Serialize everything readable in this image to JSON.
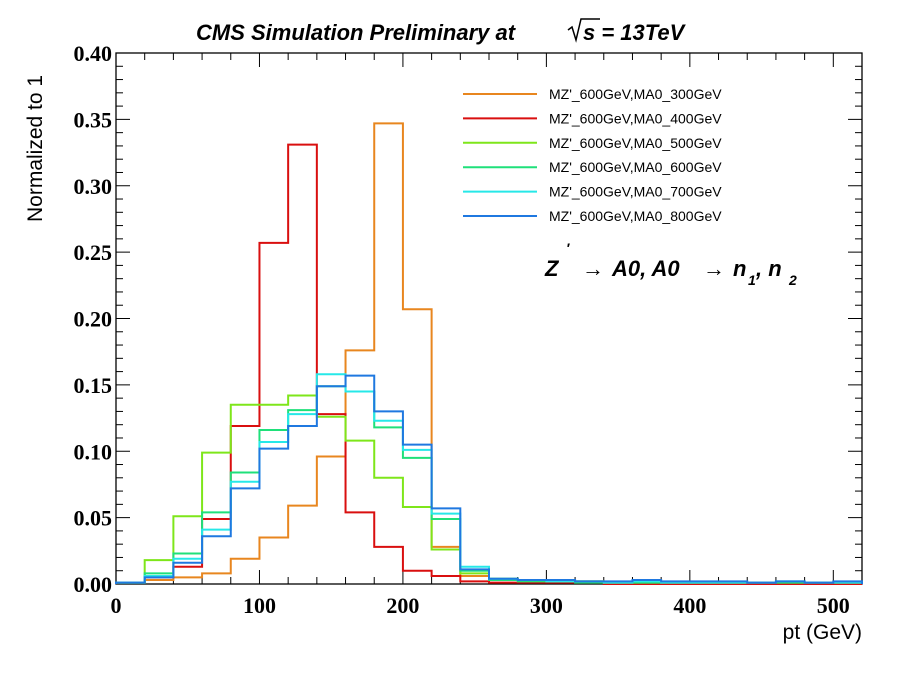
{
  "chart_data": {
    "type": "histogram",
    "title": "CMS Simulation Preliminary at",
    "title_energy": "s = 13TeV",
    "xlabel": "pt (GeV)",
    "ylabel": "Normalized to 1",
    "xlim": [
      0,
      520
    ],
    "ylim": [
      0,
      0.4
    ],
    "bin_width": 20,
    "x_ticks": [
      "0",
      "100",
      "200",
      "300",
      "400",
      "500"
    ],
    "y_ticks": [
      "0.00",
      "0.05",
      "0.10",
      "0.15",
      "0.20",
      "0.25",
      "0.30",
      "0.35",
      "0.40"
    ],
    "annotation": {
      "z": "Z",
      "prime": "′",
      "arrow1": "→",
      "a0_1": "A0, A0",
      "arrow2": "→",
      "n": "n",
      "sub1": "1",
      "comma": ", n",
      "sub2": "2"
    },
    "legend_position": "top-right",
    "series": [
      {
        "name": "MZ'_600GeV,MA0_300GeV",
        "color": "#e8861f",
        "values": [
          0.001,
          0.003,
          0.005,
          0.008,
          0.019,
          0.035,
          0.059,
          0.096,
          0.176,
          0.347,
          0.207,
          0.028,
          0.006,
          0.004,
          0.003,
          0.002,
          0.002,
          0.001,
          0.001,
          0.001,
          0.001,
          0.001,
          0.001,
          0.001,
          0.001,
          0.001
        ]
      },
      {
        "name": "MZ'_600GeV,MA0_400GeV",
        "color": "#d90f0f",
        "values": [
          0.001,
          0.005,
          0.013,
          0.049,
          0.119,
          0.257,
          0.331,
          0.128,
          0.054,
          0.028,
          0.01,
          0.006,
          0.002,
          0.001,
          0.001,
          0.001,
          0.001,
          0.0,
          0.0,
          0.0,
          0.0,
          0.0,
          0.0,
          0.0,
          0.0,
          0.0
        ]
      },
      {
        "name": "MZ'_600GeV,MA0_500GeV",
        "color": "#7ee61a",
        "values": [
          0.001,
          0.018,
          0.051,
          0.099,
          0.135,
          0.135,
          0.142,
          0.126,
          0.108,
          0.08,
          0.058,
          0.026,
          0.008,
          0.004,
          0.003,
          0.002,
          0.002,
          0.001,
          0.001,
          0.001,
          0.001,
          0.001,
          0.001,
          0.001,
          0.001,
          0.001
        ]
      },
      {
        "name": "MZ'_600GeV,MA0_600GeV",
        "color": "#1fe07a",
        "values": [
          0.001,
          0.008,
          0.023,
          0.054,
          0.084,
          0.116,
          0.131,
          0.149,
          0.145,
          0.118,
          0.095,
          0.049,
          0.01,
          0.003,
          0.002,
          0.002,
          0.001,
          0.001,
          0.001,
          0.001,
          0.001,
          0.001,
          0.001,
          0.001,
          0.001,
          0.001
        ]
      },
      {
        "name": "MZ'_600GeV,MA0_700GeV",
        "color": "#26e8e8",
        "values": [
          0.001,
          0.006,
          0.019,
          0.041,
          0.077,
          0.107,
          0.128,
          0.158,
          0.145,
          0.123,
          0.101,
          0.053,
          0.013,
          0.004,
          0.003,
          0.002,
          0.002,
          0.001,
          0.002,
          0.001,
          0.001,
          0.001,
          0.001,
          0.002,
          0.001,
          0.001
        ]
      },
      {
        "name": "MZ'_600GeV,MA0_800GeV",
        "color": "#1f78e0",
        "values": [
          0.001,
          0.005,
          0.016,
          0.036,
          0.072,
          0.102,
          0.119,
          0.149,
          0.157,
          0.13,
          0.105,
          0.057,
          0.011,
          0.004,
          0.003,
          0.003,
          0.002,
          0.002,
          0.003,
          0.002,
          0.002,
          0.002,
          0.001,
          0.002,
          0.001,
          0.002
        ]
      }
    ]
  }
}
